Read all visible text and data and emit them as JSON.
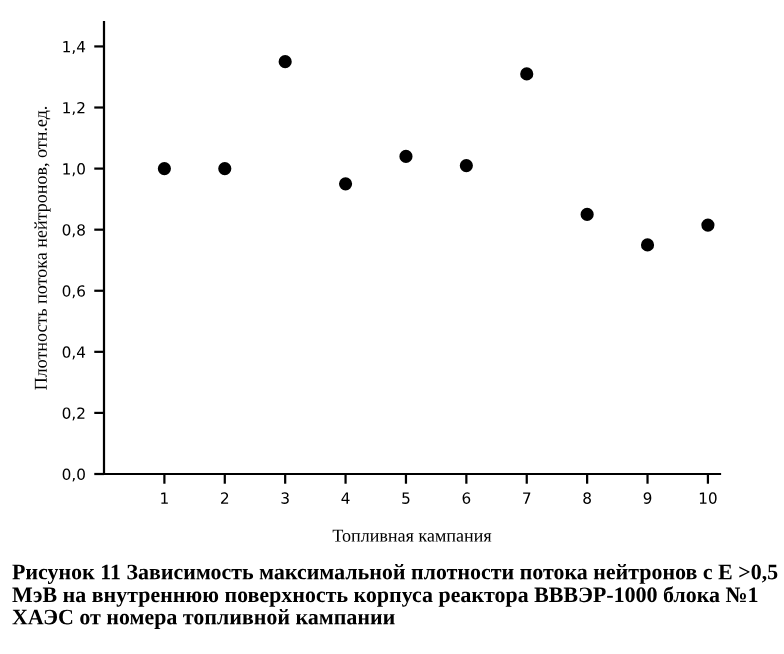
{
  "chart_data": {
    "type": "scatter",
    "xlabel": "Топливная кампания",
    "ylabel": "Плотность потока нейтронов, отн.ед.",
    "x": [
      1,
      2,
      3,
      4,
      5,
      6,
      7,
      8,
      9,
      10
    ],
    "series": [
      {
        "color": "#000000",
        "values": [
          1.0,
          1.0,
          1.35,
          0.95,
          1.04,
          1.01,
          1.31,
          0.85,
          0.75,
          0.815
        ]
      }
    ],
    "xlim": [
      0,
      10.2
    ],
    "ylim": [
      0,
      1.48
    ],
    "xticks": [
      1,
      2,
      3,
      4,
      5,
      6,
      7,
      8,
      9,
      10
    ],
    "yticks": [
      {
        "value": 0,
        "label": "0,0"
      },
      {
        "value": 0.2,
        "label": "0,2"
      },
      {
        "value": 0.4,
        "label": "0,4"
      },
      {
        "value": 0.6,
        "label": "0,6"
      },
      {
        "value": 0.8,
        "label": "0,8"
      },
      {
        "value": 1.0,
        "label": "1,0"
      },
      {
        "value": 1.2,
        "label": "1,2"
      },
      {
        "value": 1.4,
        "label": "1,4"
      }
    ],
    "annotations": [
      "Рисунок 11 Зависимость максимальной плотности потока нейтронов с Е >0,5 МэВ на внутреннюю поверхность корпуса реактора ВВВЭР-1000 блока №1 ХАЭС от номера топливной кампании"
    ],
    "grid": false,
    "marker": "circle"
  }
}
